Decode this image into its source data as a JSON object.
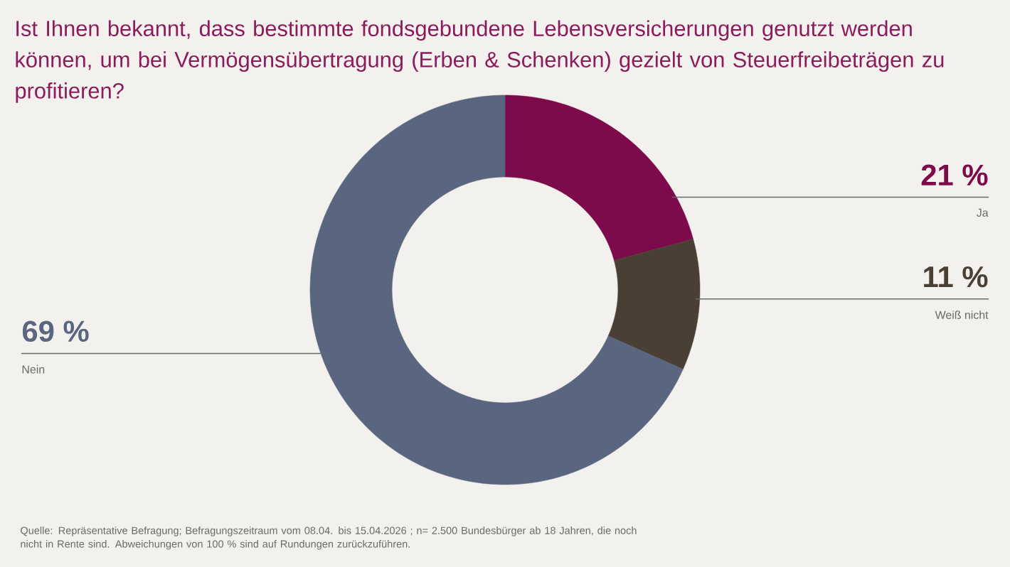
{
  "chart_data": {
    "type": "donut",
    "title": "Ist Ihnen bekannt, dass bestimmte fondsgebundene Lebensversicherungen genutzt werden können, um bei Vermögensübertragung (Erben & Schenken) gezielt von Steuerfreibeträgen zu profitieren?",
    "categories": [
      "Ja",
      "Weiß nicht",
      "Nein"
    ],
    "values": [
      21,
      11,
      69
    ],
    "colors": [
      "#7d0a4a",
      "#4a3f35",
      "#5a6680"
    ],
    "value_labels": [
      "21 %",
      "11 %",
      "69 %"
    ],
    "annotations": [
      "Quelle: Repräsentative Befragung; Befragungszeitraum vom 08.04. bis 15.04.2026 ; n= 2.500 Bundesbürger ab 18 Jahren, die noch nicht in Rente sind. Abweichungen von 100 % sind auf Rundungen zurückzuführen."
    ]
  }
}
